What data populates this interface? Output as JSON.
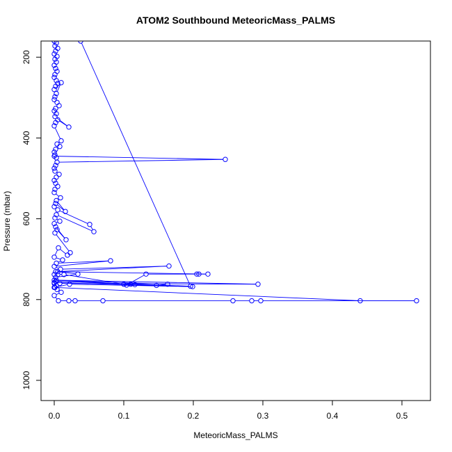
{
  "chart_data": {
    "type": "line",
    "title": "ATOM2 Southbound MeteoricMass_PALMS",
    "xlabel": "MeteoricMass_PALMS",
    "ylabel": "Pressure (mbar)",
    "xlim": [
      -0.019,
      0.541
    ],
    "ylim": [
      1050,
      160
    ],
    "y_reversed": true,
    "grid": false,
    "x_ticks": [
      0.0,
      0.1,
      0.2,
      0.3,
      0.4,
      0.5
    ],
    "x_tick_labels": [
      "0.0",
      "0.1",
      "0.2",
      "0.3",
      "0.4",
      "0.5"
    ],
    "y_ticks": [
      200,
      400,
      600,
      800,
      1000
    ],
    "y_tick_labels": [
      "200",
      "400",
      "600",
      "800",
      "1000"
    ],
    "series": [
      {
        "color": "#0000ff",
        "x": [
          0.0,
          0.003,
          0.001,
          0.005,
          0.002,
          0.0,
          0.004,
          0.001,
          0.003,
          0.0,
          0.002,
          0.004,
          0.001,
          0.0,
          0.003,
          0.005,
          0.002,
          0.0,
          0.01,
          0.003,
          0.001,
          0.0,
          0.004,
          0.007,
          0.002,
          0.0,
          0.003,
          0.001,
          0.021,
          0.005,
          0.002,
          0.0,
          0.01,
          0.004,
          0.008,
          0.002,
          0.0,
          0.001,
          0.003,
          0.0,
          0.246,
          0.004,
          0.002,
          0.0,
          0.001,
          0.007,
          0.003,
          0.0,
          0.002,
          0.005,
          0.001,
          0.0,
          0.009,
          0.003,
          0.016,
          0.002,
          0.0,
          0.005,
          0.051,
          0.057,
          0.003,
          0.001,
          0.008,
          0.0,
          0.002,
          0.017,
          0.004,
          0.001,
          0.023,
          0.019,
          0.006,
          0.0,
          0.012,
          0.003,
          0.081,
          0.0,
          0.009,
          0.165,
          0.002,
          0.0,
          0.005,
          0.014,
          0.1,
          0.11,
          0.104,
          0.132,
          0.205,
          0.208,
          0.221,
          0.005,
          0.034,
          0.002,
          0.0,
          0.163,
          0.147,
          0.116,
          0.003,
          0.293,
          0.008,
          0.0,
          0.199,
          0.022,
          0.0,
          0.44,
          0.521,
          0.297,
          0.284,
          0.257,
          0.07,
          0.03,
          0.021,
          0.006,
          0.0,
          0.01,
          0.004,
          0.001,
          0.003,
          0.0,
          0.002,
          0.196,
          0.038
        ],
        "y": [
          160,
          165,
          172,
          178,
          185,
          192,
          198,
          205,
          212,
          220,
          228,
          235,
          243,
          250,
          258,
          265,
          272,
          280,
          263,
          290,
          298,
          305,
          312,
          320,
          327,
          333,
          340,
          347,
          373,
          355,
          362,
          370,
          407,
          415,
          421,
          428,
          435,
          442,
          449,
          445,
          453,
          460,
          468,
          475,
          482,
          490,
          497,
          505,
          512,
          520,
          527,
          535,
          548,
          555,
          582,
          562,
          570,
          578,
          614,
          632,
          590,
          598,
          606,
          612,
          620,
          652,
          627,
          635,
          684,
          690,
          672,
          695,
          702,
          710,
          704,
          718,
          725,
          717,
          731,
          738,
          738,
          738,
          762,
          762,
          764,
          737,
          737,
          737,
          737,
          731,
          737,
          745,
          752,
          762,
          765,
          763,
          752,
          762,
          760,
          758,
          768,
          762,
          770,
          803,
          803,
          803,
          803,
          803,
          803,
          803,
          803,
          803,
          790,
          782,
          775,
          770,
          765,
          760,
          755,
          767,
          160
        ]
      }
    ]
  }
}
